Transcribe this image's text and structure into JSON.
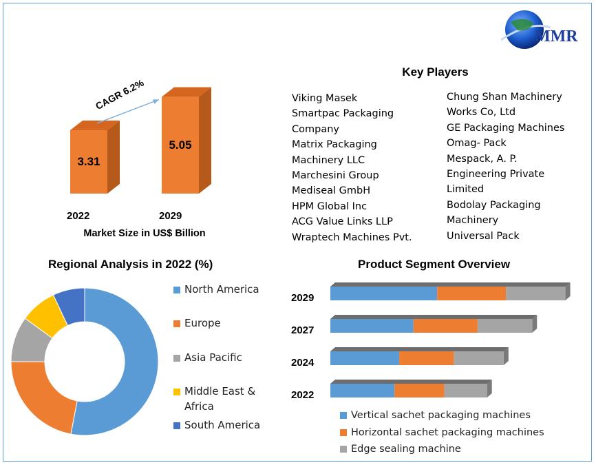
{
  "logo": {
    "text": "MMR",
    "globe_color": "#1f5fd0"
  },
  "key_players": {
    "title": "Key Players",
    "left_column": [
      "Viking Masek",
      "Smartpac Packaging",
      "Company",
      "Matrix Packaging",
      "Machinery LLC",
      "Marchesini Group",
      "Mediseal GmbH",
      "HPM Global Inc",
      "ACG Value Links LLP",
      "Wraptech Machines Pvt."
    ],
    "right_column": [
      "Chung Shan Machinery",
      "Works Co, Ltd",
      "GE Packaging Machines",
      "Omag- Pack",
      "Mespack, A. P.",
      "Engineering Private",
      "Limited",
      "Bodolay Packaging",
      "Machinery",
      "Universal Pack"
    ]
  },
  "colors": {
    "orange": "#ed7d31",
    "blue": "#5b9bd5",
    "gray": "#a5a5a5",
    "yellow": "#ffc000",
    "darkblue": "#4472c4"
  },
  "chart_data": [
    {
      "type": "bar",
      "title": "Market Size in US$ Billion",
      "categories": [
        "2022",
        "2029"
      ],
      "values": [
        3.31,
        5.05
      ],
      "value_labels": [
        "3.31",
        "5.05"
      ],
      "annotation": "CAGR 6.2%",
      "ylim": [
        0,
        5.5
      ]
    },
    {
      "type": "pie",
      "title": "Regional Analysis in 2022 (%)",
      "labels": [
        "North America",
        "Europe",
        "Asia Pacific",
        "Middle East & Africa",
        "South America"
      ],
      "legend_lines": [
        [
          "North America"
        ],
        [
          "Europe"
        ],
        [
          "Asia Pacific"
        ],
        [
          "Middle East &",
          "Africa"
        ],
        [
          "South America"
        ]
      ],
      "values": [
        53,
        22,
        10,
        8,
        7
      ],
      "colors": [
        "#5b9bd5",
        "#ed7d31",
        "#a5a5a5",
        "#ffc000",
        "#4472c4"
      ],
      "donut": true
    },
    {
      "type": "bar",
      "orientation": "horizontal",
      "stacked": true,
      "title": "Product Segment Overview",
      "categories": [
        "2029",
        "2027",
        "2024",
        "2022"
      ],
      "series": [
        {
          "name": "Vertical sachet packaging machines",
          "values": [
            45,
            35,
            29,
            27
          ],
          "color": "#5b9bd5"
        },
        {
          "name": "Horizontal sachet packaging machines",
          "values": [
            29,
            27,
            23,
            21
          ],
          "color": "#ed7d31"
        },
        {
          "name": "Edge sealing machine",
          "values": [
            25,
            23,
            21,
            18
          ],
          "color": "#a5a5a5"
        }
      ]
    }
  ]
}
